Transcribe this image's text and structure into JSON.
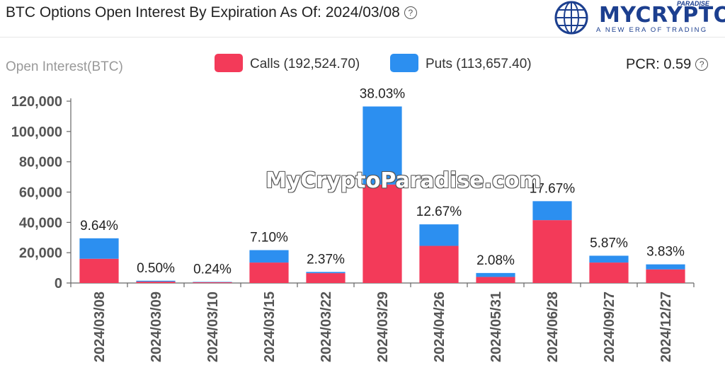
{
  "header": {
    "title": "BTC Options Open Interest By Expiration As Of: 2024/03/08",
    "help_icon": "question-circle-icon"
  },
  "brand": {
    "name": "MYCRYPTO",
    "name_top": "PARADISE",
    "tagline": "A NEW ERA OF TRADING",
    "logo_icon": "globe-icon"
  },
  "watermark": "MyCryptoParadise.com",
  "pcr": {
    "label": "PCR: 0.59",
    "help_icon": "question-circle-icon"
  },
  "colors": {
    "calls": "#f33a59",
    "puts": "#2c8ff0",
    "axis": "#666666"
  },
  "chart_data": {
    "type": "bar",
    "stacked": true,
    "ylabel": "Open Interest(BTC)",
    "ylim": [
      0,
      120000
    ],
    "yticks": [
      "0",
      "20,000",
      "40,000",
      "60,000",
      "80,000",
      "100,000",
      "120,000"
    ],
    "legend_position": "top-center",
    "grid": false,
    "categories": [
      "2024/03/08",
      "2024/03/09",
      "2024/03/10",
      "2024/03/15",
      "2024/03/22",
      "2024/03/29",
      "2024/04/26",
      "2024/05/31",
      "2024/06/28",
      "2024/09/27",
      "2024/12/27"
    ],
    "series": [
      {
        "name": "Calls (192,524.70)",
        "values": [
          16000,
          900,
          500,
          13500,
          6500,
          65000,
          24500,
          4000,
          41500,
          13500,
          9000
        ]
      },
      {
        "name": "Puts (113,657.40)",
        "values": [
          13500,
          600,
          250,
          8200,
          800,
          51500,
          14200,
          2600,
          12500,
          4500,
          3300
        ]
      }
    ],
    "data_labels": [
      "9.64%",
      "0.50%",
      "0.24%",
      "7.10%",
      "2.37%",
      "38.03%",
      "12.67%",
      "2.08%",
      "17.67%",
      "5.87%",
      "3.83%"
    ]
  }
}
